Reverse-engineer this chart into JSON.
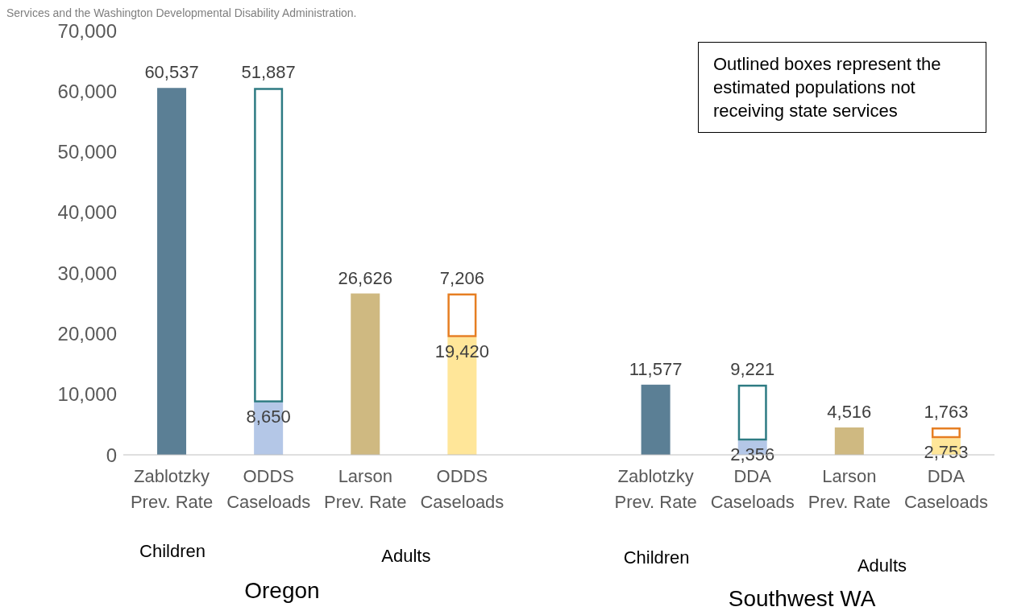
{
  "chart_data": {
    "type": "bar",
    "stacked": true,
    "categories": [
      "Zablotzky Prev. Rate",
      "ODDS Caseloads",
      "Larson Prev. Rate",
      "ODDS Caseloads",
      null,
      "Zablotzky Prev. Rate",
      "DDA Caseloads",
      "Larson Prev. Rate",
      "DDA Caseloads"
    ],
    "series": [
      {
        "values": [
          60537,
          8650,
          26626,
          19420,
          null,
          11577,
          2356,
          4516,
          2753
        ],
        "colors": [
          "#5b7f95",
          "#b4c7e7",
          "#cfb981",
          "#ffe699",
          null,
          "#5b7f95",
          "#b4c7e7",
          "#cfb981",
          "#ffe699"
        ],
        "value_labels": [
          "60,537",
          "8,650",
          "26,626",
          "19,420",
          null,
          "11,577",
          "2,356",
          "4,516",
          "2,753"
        ]
      },
      {
        "values": [
          null,
          51887,
          null,
          7206,
          null,
          null,
          9221,
          null,
          1763
        ],
        "colors": [
          null,
          "#2e7b83",
          null,
          "#e67e22",
          null,
          null,
          "#2e7b83",
          null,
          "#e67e22"
        ],
        "value_labels": [
          null,
          "51,887",
          null,
          "7,206",
          null,
          null,
          "9,221",
          null,
          "1,763"
        ]
      }
    ],
    "ylim": [
      0,
      70000
    ],
    "yticks": [
      {
        "value": 0,
        "label": "0"
      },
      {
        "value": 10000,
        "label": "10,000"
      },
      {
        "value": 20000,
        "label": "20,000"
      },
      {
        "value": 30000,
        "label": "30,000"
      },
      {
        "value": 40000,
        "label": "40,000"
      },
      {
        "value": 50000,
        "label": "50,000"
      },
      {
        "value": 60000,
        "label": "60,000"
      },
      {
        "value": 70000,
        "label": "70,000"
      }
    ],
    "annotations": [
      "Services and the Washington Developmental Disability Administration.",
      "Outlined boxes represent the estimated populations not receiving state services",
      "Children",
      "Adults",
      "Oregon",
      "Children",
      "Adults",
      "Southwest WA"
    ]
  }
}
